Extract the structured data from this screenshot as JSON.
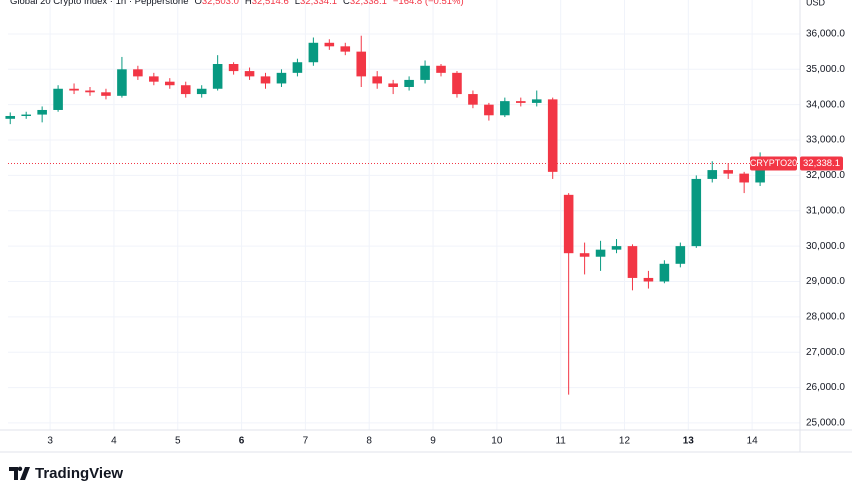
{
  "chart_data": {
    "type": "candlestick",
    "title": "Global 20 Crypto Index · 1h · Pepperstone",
    "ohlc_legend": [
      {
        "label": "O",
        "value": "32,503.0"
      },
      {
        "label": "H",
        "value": "32,514.6"
      },
      {
        "label": "L",
        "value": "32,334.1"
      },
      {
        "label": "C",
        "value": "32,338.1"
      }
    ],
    "change": "−164.8 (−0.51%)",
    "currency": "USD",
    "symbol": "CRYPTO20",
    "last_price": 32338.1,
    "last_price_label": "32,338.1",
    "brand": "TradingView",
    "up_color": "#089981",
    "down_color": "#f23645",
    "x": [
      2.375,
      2.625,
      2.875,
      3.125,
      3.375,
      3.625,
      3.875,
      4.125,
      4.375,
      4.625,
      4.875,
      5.125,
      5.375,
      5.625,
      5.875,
      6.125,
      6.375,
      6.625,
      6.875,
      7.125,
      7.375,
      7.625,
      7.875,
      8.125,
      8.375,
      8.625,
      8.875,
      9.125,
      9.375,
      9.625,
      9.875,
      10.125,
      10.375,
      10.625,
      10.875,
      11.125,
      11.375,
      11.625,
      11.875,
      12.125,
      12.375,
      12.625,
      12.875,
      13.125,
      13.375,
      13.625,
      13.875,
      14.125
    ],
    "open": [
      33600,
      33680,
      33720,
      33850,
      34450,
      34400,
      34350,
      34250,
      35000,
      34800,
      34650,
      34550,
      34300,
      34450,
      35150,
      34950,
      34800,
      34600,
      34900,
      35200,
      35750,
      35650,
      35500,
      34800,
      34600,
      34500,
      34700,
      35100,
      34900,
      34300,
      34000,
      33700,
      34100,
      34050,
      34150,
      31450,
      29800,
      29700,
      29900,
      30000,
      29100,
      29000,
      29500,
      30000,
      31900,
      32150,
      32050,
      31800
    ],
    "high": [
      33780,
      33800,
      33950,
      34550,
      34600,
      34500,
      34450,
      35350,
      35100,
      34900,
      34750,
      34650,
      34550,
      35400,
      35200,
      35050,
      34900,
      35000,
      35300,
      35900,
      35850,
      35750,
      35950,
      34950,
      34700,
      34800,
      35250,
      35150,
      34950,
      34400,
      34050,
      34200,
      34200,
      34400,
      34200,
      31500,
      30100,
      30150,
      30200,
      30050,
      29300,
      29600,
      30100,
      32000,
      32400,
      32350,
      32100,
      32650
    ],
    "low": [
      33450,
      33600,
      33500,
      33800,
      34300,
      34250,
      34150,
      34200,
      34700,
      34550,
      34450,
      34200,
      34200,
      34400,
      34850,
      34700,
      34450,
      34500,
      34800,
      35100,
      35550,
      35400,
      34500,
      34450,
      34300,
      34400,
      34600,
      34800,
      34200,
      33900,
      33550,
      33650,
      33950,
      33950,
      31900,
      25800,
      29200,
      29300,
      29800,
      28750,
      28800,
      28950,
      29400,
      29950,
      31800,
      31900,
      31500,
      31700
    ],
    "close": [
      33680,
      33720,
      33850,
      34450,
      34400,
      34350,
      34250,
      35000,
      34800,
      34650,
      34550,
      34300,
      34450,
      35150,
      34950,
      34800,
      34600,
      34900,
      35200,
      35750,
      35650,
      35500,
      34800,
      34600,
      34500,
      34700,
      35100,
      34900,
      34300,
      34000,
      33700,
      34100,
      34050,
      34150,
      32100,
      29800,
      29700,
      29900,
      30000,
      29100,
      29000,
      29500,
      30000,
      31900,
      32150,
      32050,
      31800,
      32338.1
    ],
    "xlim": [
      2.34,
      14.75
    ],
    "xticks": [
      3,
      4,
      5,
      6,
      7,
      8,
      9,
      10,
      11,
      12,
      13,
      14
    ],
    "bold_xticks": [
      6,
      13
    ],
    "ylim": [
      24800,
      36960
    ],
    "yticks": [
      {
        "value": 25000,
        "label": "25,000.0"
      },
      {
        "value": 26000,
        "label": "26,000.0"
      },
      {
        "value": 27000,
        "label": "27,000.0"
      },
      {
        "value": 28000,
        "label": "28,000.0"
      },
      {
        "value": 29000,
        "label": "29,000.0"
      },
      {
        "value": 30000,
        "label": "30,000.0"
      },
      {
        "value": 31000,
        "label": "31,000.0"
      },
      {
        "value": 32000,
        "label": "32,000.0"
      },
      {
        "value": 33000,
        "label": "33,000.0"
      },
      {
        "value": 34000,
        "label": "34,000.0"
      },
      {
        "value": 35000,
        "label": "35,000.0"
      },
      {
        "value": 36000,
        "label": "36,000.0"
      }
    ],
    "grid": true
  }
}
